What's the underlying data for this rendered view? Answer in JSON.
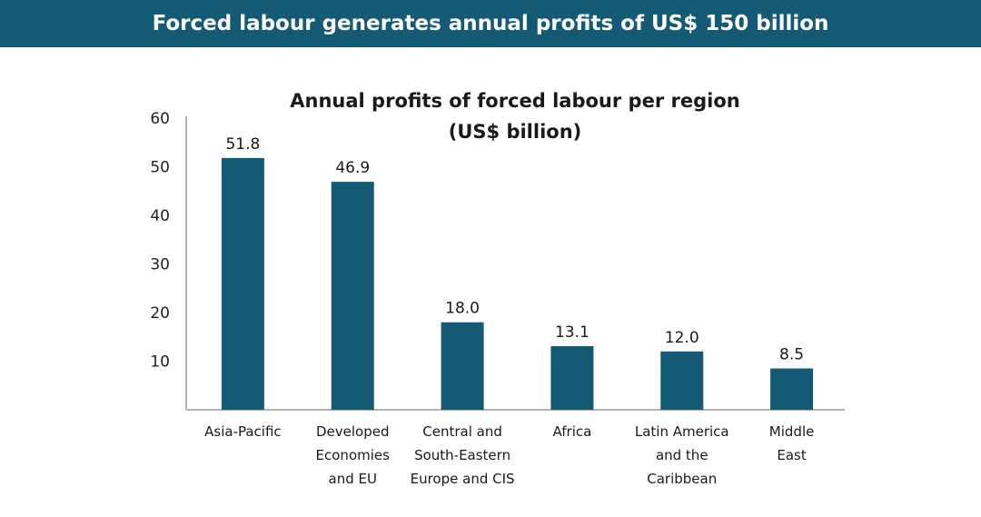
{
  "banner": {
    "title": "Forced labour generates annual profits of US$ 150 billion"
  },
  "chart_data": {
    "type": "bar",
    "title_lines": [
      "Annual profits of forced labour per region",
      "(US$ billion)"
    ],
    "xlabel": "",
    "ylabel": "",
    "categories": [
      [
        "Asia-Pacific"
      ],
      [
        "Developed",
        "Economies",
        "and EU"
      ],
      [
        "Central and",
        "South-Eastern",
        "Europe and CIS"
      ],
      [
        "Africa"
      ],
      [
        "Latin America",
        "and the",
        "Caribbean"
      ],
      [
        "Middle",
        "East"
      ]
    ],
    "values": [
      51.8,
      46.9,
      18.0,
      13.1,
      12.0,
      8.5
    ],
    "data_labels": [
      "51.8",
      "46.9",
      "18.0",
      "13.1",
      "12.0",
      "8.5"
    ],
    "y_ticks": [
      10,
      20,
      30,
      40,
      50,
      60
    ],
    "y_tick_labels": [
      "10",
      "20",
      "30",
      "40",
      "50",
      "60"
    ],
    "ylim": [
      0,
      60
    ],
    "grid": false,
    "bar_color": "#155a75"
  }
}
